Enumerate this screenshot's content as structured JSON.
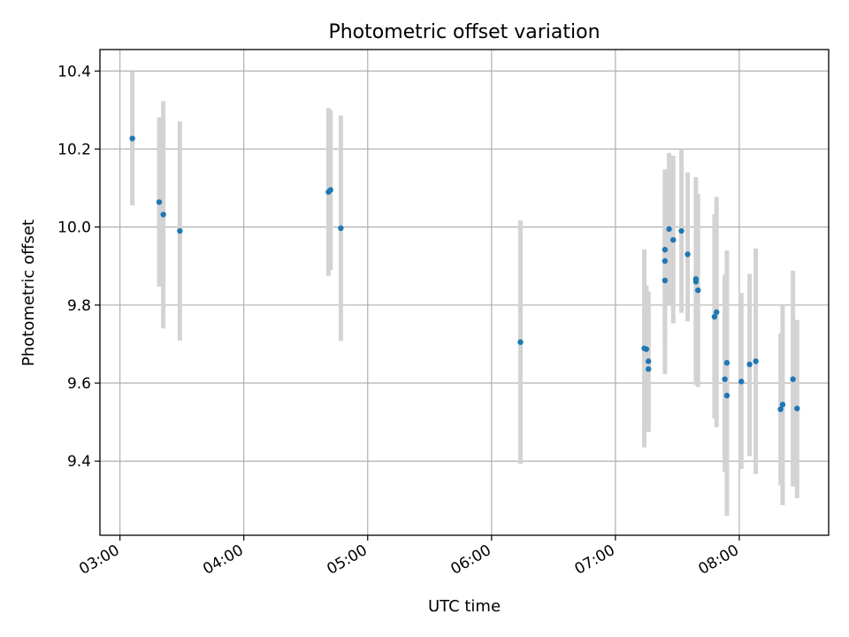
{
  "chart_data": {
    "type": "scatter",
    "title": "Photometric offset variation",
    "xlabel": "UTC time",
    "ylabel": "Photometric offset",
    "x_tick_labels": [
      "03:00",
      "04:00",
      "05:00",
      "06:00",
      "07:00",
      "08:00"
    ],
    "x_ticks_minutes": [
      180,
      240,
      300,
      360,
      420,
      480
    ],
    "y_tick_labels": [
      "9.4",
      "9.6",
      "9.8",
      "10.0",
      "10.2",
      "10.4"
    ],
    "y_ticks": [
      9.4,
      9.6,
      9.8,
      10.0,
      10.2,
      10.4
    ],
    "xlim_minutes": [
      170.3,
      523.3
    ],
    "ylim": [
      9.21,
      10.455
    ],
    "grid": true,
    "colors": {
      "marker": "#1f77b4",
      "errorbar": "#d3d3d3",
      "grid": "#b0b0b0"
    },
    "points": [
      {
        "t": "03:06",
        "y": 10.227,
        "lo": 10.056,
        "hi": 10.398
      },
      {
        "t": "03:19",
        "y": 10.064,
        "lo": 9.847,
        "hi": 10.281
      },
      {
        "t": "03:21",
        "y": 10.032,
        "lo": 9.74,
        "hi": 10.323
      },
      {
        "t": "03:29",
        "y": 9.99,
        "lo": 9.709,
        "hi": 10.271
      },
      {
        "t": "04:41",
        "y": 10.09,
        "lo": 9.875,
        "hi": 10.305
      },
      {
        "t": "04:42",
        "y": 10.095,
        "lo": 9.89,
        "hi": 10.3
      },
      {
        "t": "04:47",
        "y": 9.997,
        "lo": 9.708,
        "hi": 10.286
      },
      {
        "t": "06:14",
        "y": 9.705,
        "lo": 9.393,
        "hi": 10.017
      },
      {
        "t": "07:14",
        "y": 9.689,
        "lo": 9.435,
        "hi": 9.943
      },
      {
        "t": "07:15",
        "y": 9.687,
        "lo": 9.475,
        "hi": 9.85
      },
      {
        "t": "07:16",
        "y": 9.656,
        "lo": 9.477,
        "hi": 9.835
      },
      {
        "t": "07:16",
        "y": 9.636,
        "lo": 9.475,
        "hi": 9.8
      },
      {
        "t": "07:24",
        "y": 9.942,
        "lo": 9.735,
        "hi": 10.148
      },
      {
        "t": "07:24",
        "y": 9.863,
        "lo": 9.623,
        "hi": 10.103
      },
      {
        "t": "07:24",
        "y": 9.913,
        "lo": 9.7,
        "hi": 10.128
      },
      {
        "t": "07:26",
        "y": 9.995,
        "lo": 9.8,
        "hi": 10.19
      },
      {
        "t": "07:28",
        "y": 9.967,
        "lo": 9.753,
        "hi": 10.183
      },
      {
        "t": "07:32",
        "y": 9.99,
        "lo": 9.78,
        "hi": 10.2
      },
      {
        "t": "07:35",
        "y": 9.93,
        "lo": 9.758,
        "hi": 10.14
      },
      {
        "t": "07:39",
        "y": 9.86,
        "lo": 9.595,
        "hi": 10.128
      },
      {
        "t": "07:39",
        "y": 9.867,
        "lo": 9.655,
        "hi": 10.085
      },
      {
        "t": "07:40",
        "y": 9.838,
        "lo": 9.59,
        "hi": 10.085
      },
      {
        "t": "07:48",
        "y": 9.77,
        "lo": 9.51,
        "hi": 10.033
      },
      {
        "t": "07:49",
        "y": 9.782,
        "lo": 9.487,
        "hi": 10.077
      },
      {
        "t": "07:53",
        "y": 9.61,
        "lo": 9.372,
        "hi": 9.878
      },
      {
        "t": "07:54",
        "y": 9.652,
        "lo": 9.26,
        "hi": 9.94
      },
      {
        "t": "07:54",
        "y": 9.568,
        "lo": 9.372,
        "hi": 9.765
      },
      {
        "t": "08:01",
        "y": 9.604,
        "lo": 9.38,
        "hi": 9.831
      },
      {
        "t": "08:05",
        "y": 9.648,
        "lo": 9.413,
        "hi": 9.88
      },
      {
        "t": "08:08",
        "y": 9.656,
        "lo": 9.367,
        "hi": 9.945
      },
      {
        "t": "08:20",
        "y": 9.533,
        "lo": 9.338,
        "hi": 9.727
      },
      {
        "t": "08:21",
        "y": 9.545,
        "lo": 9.287,
        "hi": 9.8
      },
      {
        "t": "08:26",
        "y": 9.61,
        "lo": 9.335,
        "hi": 9.888
      },
      {
        "t": "08:28",
        "y": 9.535,
        "lo": 9.305,
        "hi": 9.762
      }
    ]
  }
}
